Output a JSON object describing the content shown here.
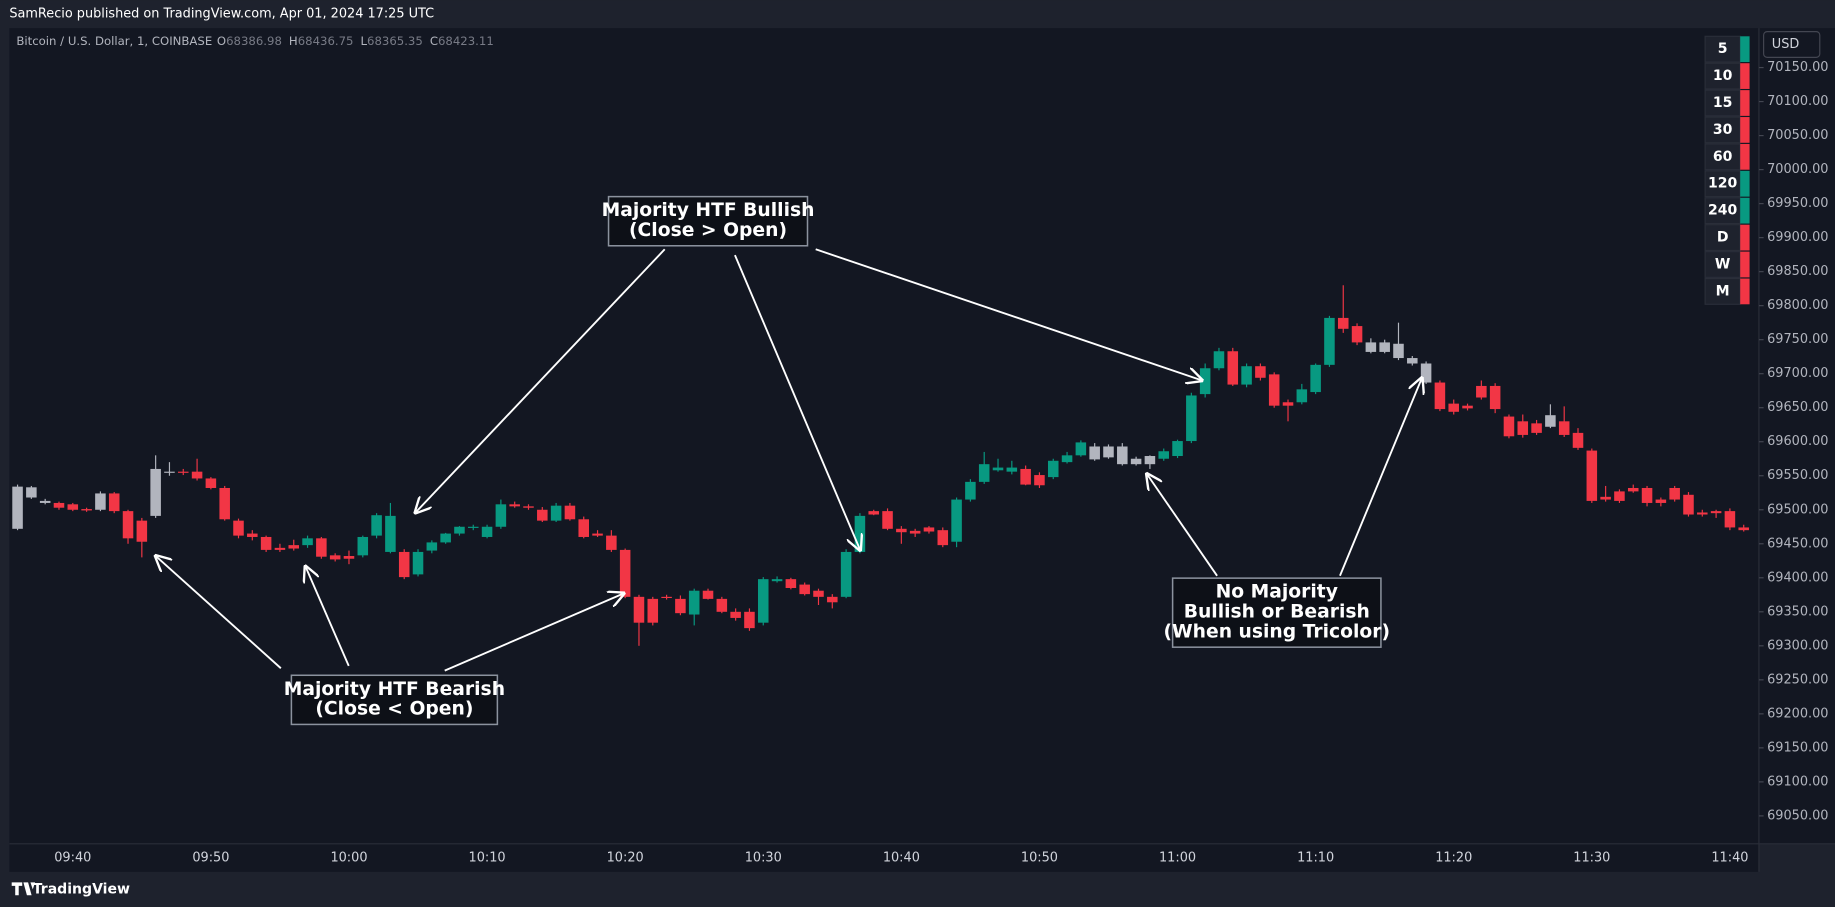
{
  "header": {
    "publisher": "SamRecio published on TradingView.com, Apr 01, 2024 17:25 UTC"
  },
  "chart_data": {
    "type": "candlestick",
    "symbol": "Bitcoin / U.S. Dollar, 1, COINBASE",
    "ohlc": [
      {
        "label": "O",
        "value": 68386.98
      },
      {
        "label": "H",
        "value": 68436.75
      },
      {
        "label": "L",
        "value": 68365.35
      },
      {
        "label": "C",
        "value": 68423.11
      }
    ],
    "currency": "USD",
    "categories": [
      null,
      null,
      null,
      null,
      "09:40",
      null,
      null,
      null,
      null,
      null,
      null,
      null,
      null,
      null,
      "09:50",
      null,
      null,
      null,
      null,
      null,
      null,
      null,
      null,
      null,
      "10:00",
      null,
      null,
      null,
      null,
      null,
      null,
      null,
      null,
      null,
      "10:10",
      null,
      null,
      null,
      null,
      null,
      null,
      null,
      null,
      null,
      "10:20",
      null,
      null,
      null,
      null,
      null,
      null,
      null,
      null,
      null,
      "10:30",
      null,
      null,
      null,
      null,
      null,
      null,
      null,
      null,
      null,
      "10:40",
      null,
      null,
      null,
      null,
      null,
      null,
      null,
      null,
      null,
      "10:50",
      null,
      null,
      null,
      null,
      null,
      null,
      null,
      null,
      null,
      "11:00",
      null,
      null,
      null,
      null,
      null,
      null,
      null,
      null,
      null,
      "11:10",
      null,
      null,
      null,
      null,
      null,
      null,
      null,
      null,
      null,
      "11:20",
      null,
      null,
      null,
      null,
      null,
      null,
      null,
      null,
      null,
      "11:30",
      null,
      null,
      null,
      null,
      null,
      null,
      null,
      null,
      null,
      "11:40",
      null
    ],
    "open": [
      69534,
      69518,
      69513,
      69510,
      69508,
      69501,
      69500,
      69524,
      69498,
      69484,
      69491,
      69556,
      69556,
      69556,
      69546,
      69532,
      69484,
      69465,
      69460,
      69444,
      69448,
      69448,
      69458,
      69433,
      69432,
      69433,
      69462,
      69438,
      69438,
      69405,
      69440,
      69452,
      69465,
      69475,
      69460,
      69475,
      69508,
      69505,
      69500,
      69484,
      69506,
      69486,
      69465,
      69462,
      69441,
      69372,
      69369,
      69372,
      69369,
      69346,
      69381,
      69369,
      69350,
      69350,
      69334,
      69395,
      69398,
      69390,
      69381,
      69372,
      69372,
      69438,
      69498,
      69498,
      69472,
      69469,
      69474,
      69470,
      69453,
      69515,
      69541,
      69558,
      69556,
      69560,
      69551,
      69548,
      69570,
      69580,
      69593,
      69593,
      69593,
      69575,
      69567,
      69575,
      69579,
      69601,
      69670,
      69708,
      69733,
      69684,
      69711,
      69699,
      69658,
      69658,
      69673,
      69713,
      69782,
      69770,
      69746,
      69746,
      69744,
      69723,
      69715,
      69687,
      69656,
      69653,
      69682,
      69682,
      69637,
      69630,
      69627,
      69639,
      69630,
      69613,
      69587,
      69519,
      69527,
      69532,
      69532,
      69515,
      69532,
      69522,
      69496,
      69498,
      69498,
      69474
    ],
    "high": [
      69537,
      69535,
      69516,
      69512,
      69510,
      69503,
      69527,
      69526,
      69500,
      69488,
      69580,
      69570,
      69560,
      69575,
      69548,
      69535,
      69487,
      69470,
      69462,
      69450,
      69456,
      69462,
      69460,
      69436,
      69440,
      69462,
      69495,
      69510,
      69442,
      69442,
      69455,
      69466,
      69476,
      69478,
      69478,
      69515,
      69512,
      69508,
      69504,
      69510,
      69510,
      69490,
      69470,
      69470,
      69443,
      69375,
      69372,
      69375,
      69374,
      69384,
      69384,
      69372,
      69355,
      69355,
      69401,
      69402,
      69400,
      69393,
      69384,
      69376,
      69442,
      69495,
      69500,
      69502,
      69476,
      69472,
      69476,
      69474,
      69518,
      69545,
      69585,
      69575,
      69572,
      69565,
      69555,
      69575,
      69585,
      69602,
      69598,
      69596,
      69598,
      69578,
      69580,
      69590,
      69603,
      69672,
      69715,
      69738,
      69738,
      69715,
      69715,
      69702,
      69662,
      69685,
      69715,
      69785,
      69830,
      69774,
      69752,
      69750,
      69775,
      69726,
      69718,
      69690,
      69662,
      69656,
      69690,
      69686,
      69640,
      69640,
      69632,
      69655,
      69652,
      69620,
      69590,
      69535,
      69530,
      69537,
      69535,
      69518,
      69535,
      69526,
      69500,
      69500,
      69502,
      69478
    ],
    "low": [
      69470,
      69516,
      69508,
      69500,
      69498,
      69497,
      69498,
      69495,
      69450,
      69430,
      69488,
      69550,
      69551,
      69543,
      69530,
      69484,
      69458,
      69455,
      69438,
      69438,
      69440,
      69444,
      69428,
      69424,
      69420,
      69430,
      69458,
      69436,
      69398,
      69402,
      69436,
      69450,
      69462,
      69470,
      69458,
      69472,
      69503,
      69500,
      69482,
      69482,
      69484,
      69458,
      69460,
      69438,
      69370,
      69300,
      69330,
      69368,
      69345,
      69330,
      69368,
      69348,
      69337,
      69322,
      69330,
      69393,
      69383,
      69374,
      69360,
      69355,
      69370,
      69436,
      69492,
      69470,
      69450,
      69460,
      69465,
      69445,
      69445,
      69512,
      69538,
      69556,
      69552,
      69536,
      69532,
      69545,
      69568,
      69578,
      69572,
      69575,
      69565,
      69565,
      69560,
      69572,
      69576,
      69598,
      69665,
      69705,
      69682,
      69680,
      69690,
      69650,
      69630,
      69655,
      69670,
      69710,
      69760,
      69742,
      69730,
      69730,
      69720,
      69712,
      69685,
      69645,
      69640,
      69646,
      69662,
      69642,
      69605,
      69606,
      69610,
      69620,
      69607,
      69588,
      69510,
      69512,
      69510,
      69525,
      69505,
      69505,
      69512,
      69490,
      69490,
      69488,
      69470,
      69468
    ],
    "close": [
      69472,
      69533,
      69510,
      69503,
      69500,
      69499,
      69524,
      69498,
      69458,
      69453,
      69560,
      69555,
      69555,
      69546,
      69532,
      69486,
      69462,
      69460,
      69441,
      69441,
      69443,
      69458,
      69431,
      69427,
      69428,
      69460,
      69492,
      69491,
      69401,
      69438,
      69452,
      69465,
      69475,
      69475,
      69475,
      69508,
      69505,
      69503,
      69484,
      69506,
      69486,
      69460,
      69462,
      69441,
      69372,
      69334,
      69334,
      69372,
      69348,
      69381,
      69369,
      69350,
      69341,
      69326,
      69398,
      69398,
      69385,
      69376,
      69372,
      69364,
      69438,
      69491,
      69493,
      69472,
      69467,
      69465,
      69468,
      69448,
      69515,
      69541,
      69567,
      69562,
      69562,
      69537,
      69536,
      69572,
      69580,
      69599,
      69574,
      69577,
      69567,
      69567,
      69579,
      69586,
      69601,
      69668,
      69708,
      69733,
      69684,
      69711,
      69694,
      69653,
      69653,
      69677,
      69713,
      69782,
      69766,
      69746,
      69732,
      69732,
      69723,
      69715,
      69687,
      69648,
      69644,
      69649,
      69665,
      69648,
      69608,
      69610,
      69613,
      69622,
      69610,
      69591,
      69513,
      69515,
      69513,
      69527,
      69510,
      69510,
      69515,
      69493,
      69493,
      69495,
      69474,
      69470
    ],
    "colors": [
      "#b2b5be",
      "#b2b5be",
      "#b2b5be",
      "#f23645",
      "#f23645",
      "#f23645",
      "#b2b5be",
      "#f23645",
      "#f23645",
      "#f23645",
      "#b2b5be",
      "#b2b5be",
      "#f23645",
      "#f23645",
      "#f23645",
      "#f23645",
      "#f23645",
      "#f23645",
      "#f23645",
      "#f23645",
      "#f23645",
      "#089981",
      "#f23645",
      "#f23645",
      "#f23645",
      "#089981",
      "#089981",
      "#089981",
      "#f23645",
      "#089981",
      "#089981",
      "#089981",
      "#089981",
      "#089981",
      "#089981",
      "#089981",
      "#f23645",
      "#f23645",
      "#f23645",
      "#089981",
      "#f23645",
      "#f23645",
      "#f23645",
      "#f23645",
      "#f23645",
      "#f23645",
      "#f23645",
      "#f23645",
      "#f23645",
      "#089981",
      "#f23645",
      "#f23645",
      "#f23645",
      "#f23645",
      "#089981",
      "#089981",
      "#f23645",
      "#f23645",
      "#f23645",
      "#f23645",
      "#089981",
      "#089981",
      "#f23645",
      "#f23645",
      "#f23645",
      "#f23645",
      "#f23645",
      "#f23645",
      "#089981",
      "#089981",
      "#089981",
      "#089981",
      "#089981",
      "#f23645",
      "#f23645",
      "#089981",
      "#089981",
      "#089981",
      "#b2b5be",
      "#b2b5be",
      "#b2b5be",
      "#b2b5be",
      "#b2b5be",
      "#089981",
      "#089981",
      "#089981",
      "#089981",
      "#089981",
      "#f23645",
      "#089981",
      "#f23645",
      "#f23645",
      "#f23645",
      "#089981",
      "#089981",
      "#089981",
      "#f23645",
      "#f23645",
      "#b2b5be",
      "#b2b5be",
      "#b2b5be",
      "#b2b5be",
      "#b2b5be",
      "#f23645",
      "#f23645",
      "#f23645",
      "#f23645",
      "#f23645",
      "#f23645",
      "#f23645",
      "#f23645",
      "#b2b5be",
      "#f23645",
      "#f23645",
      "#f23645",
      "#f23645",
      "#f23645",
      "#f23645",
      "#f23645",
      "#f23645",
      "#f23645",
      "#f23645",
      "#f23645",
      "#f23645",
      "#f23645",
      "#f23645"
    ],
    "ylim": [
      69009,
      70208
    ],
    "yticks": [
      {
        "value": 69050,
        "label": "69050.00"
      },
      {
        "value": 69100,
        "label": "69100.00"
      },
      {
        "value": 69150,
        "label": "69150.00"
      },
      {
        "value": 69200,
        "label": "69200.00"
      },
      {
        "value": 69250,
        "label": "69250.00"
      },
      {
        "value": 69300,
        "label": "69300.00"
      },
      {
        "value": 69350,
        "label": "69350.00"
      },
      {
        "value": 69400,
        "label": "69400.00"
      },
      {
        "value": 69450,
        "label": "69450.00"
      },
      {
        "value": 69500,
        "label": "69500.00"
      },
      {
        "value": 69550,
        "label": "69550.00"
      },
      {
        "value": 69600,
        "label": "69600.00"
      },
      {
        "value": 69650,
        "label": "69650.00"
      },
      {
        "value": 69700,
        "label": "69700.00"
      },
      {
        "value": 69750,
        "label": "69750.00"
      },
      {
        "value": 69800,
        "label": "69800.00"
      },
      {
        "value": 69850,
        "label": "69850.00"
      },
      {
        "value": 69900,
        "label": "69900.00"
      },
      {
        "value": 69950,
        "label": "69950.00"
      },
      {
        "value": 70000,
        "label": "70000.00"
      },
      {
        "value": 70050,
        "label": "70050.00"
      },
      {
        "value": 70100,
        "label": "70100.00"
      },
      {
        "value": 70150,
        "label": "70150.00"
      }
    ],
    "grid": false,
    "htf_table": [
      {
        "label": "5",
        "color": "#089981"
      },
      {
        "label": "10",
        "color": "#f23645"
      },
      {
        "label": "15",
        "color": "#f23645"
      },
      {
        "label": "30",
        "color": "#f23645"
      },
      {
        "label": "60",
        "color": "#f23645"
      },
      {
        "label": "120",
        "color": "#089981"
      },
      {
        "label": "240",
        "color": "#089981"
      },
      {
        "label": "D",
        "color": "#f23645"
      },
      {
        "label": "W",
        "color": "#f23645"
      },
      {
        "label": "M",
        "color": "#f23645"
      }
    ],
    "annotations": [
      {
        "lines": [
          "Majority HTF Bullish",
          "(Close > Open)"
        ]
      },
      {
        "lines": [
          "Majority HTF Bearish",
          "(Close < Open)"
        ]
      },
      {
        "lines": [
          "No Majority",
          "Bullish or Bearish",
          "(When using Tricolor)"
        ]
      }
    ]
  },
  "footer": {
    "brand": "TradingView"
  }
}
